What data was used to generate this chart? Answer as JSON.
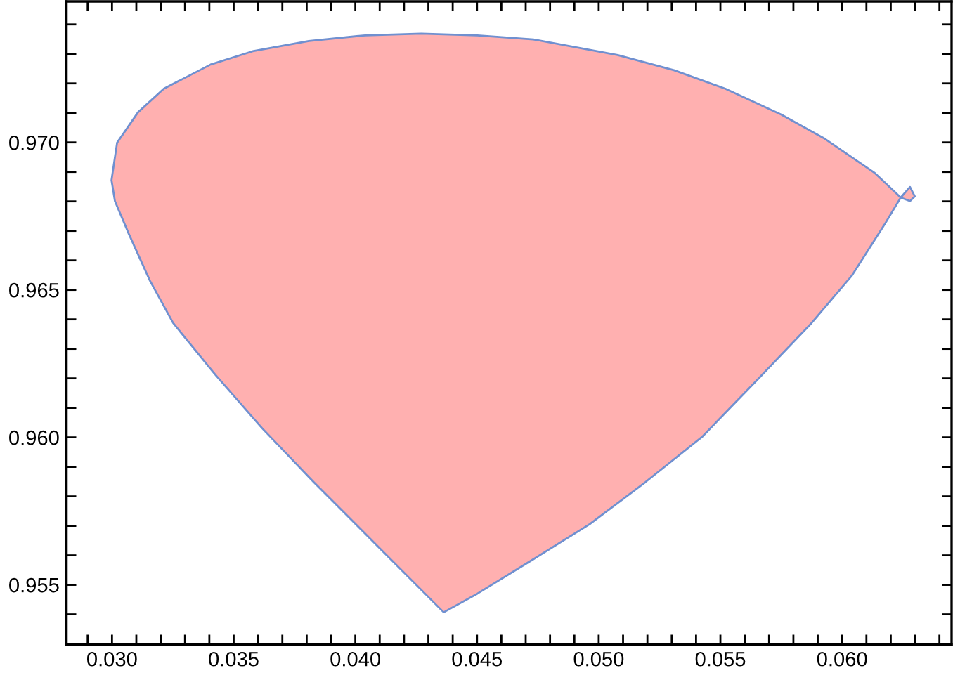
{
  "chart_data": {
    "type": "area",
    "series": [
      {
        "color": "#ffb0b0",
        "x": [
          0.02998,
          0.03021,
          0.03107,
          0.03213,
          0.03405,
          0.03578,
          0.03809,
          0.0404,
          0.04271,
          0.04501,
          0.04732,
          0.05078,
          0.05309,
          0.0552,
          0.05751,
          0.05924,
          0.06135,
          0.06241,
          0.06279,
          0.06299,
          0.06279,
          0.06241,
          0.06174,
          0.06039,
          0.05875,
          0.05655,
          0.05424,
          0.05193,
          0.04963,
          0.04732,
          0.04501,
          0.04363,
          0.04098,
          0.03828,
          0.03617,
          0.03424,
          0.03251,
          0.03156,
          0.03069,
          0.03012
        ],
        "values": [
          0.96872,
          0.96999,
          0.97102,
          0.97182,
          0.97264,
          0.97309,
          0.97344,
          0.97363,
          0.97369,
          0.97363,
          0.97349,
          0.97296,
          0.97245,
          0.97182,
          0.97094,
          0.97015,
          0.96896,
          0.96813,
          0.96849,
          0.96817,
          0.96801,
          0.96813,
          0.96721,
          0.96547,
          0.96388,
          0.96198,
          0.96001,
          0.95849,
          0.95706,
          0.95587,
          0.9547,
          0.95407,
          0.95626,
          0.95849,
          0.96031,
          0.96213,
          0.96388,
          0.96531,
          0.9669,
          0.96801
        ]
      }
    ],
    "xlim": [
      0.02813,
      0.0645
    ],
    "ylim": [
      0.95298,
      0.97478
    ],
    "xticks": [
      {
        "value": 0.029,
        "label": null
      },
      {
        "value": 0.03,
        "label": "0.030"
      },
      {
        "value": 0.031,
        "label": null
      },
      {
        "value": 0.032,
        "label": null
      },
      {
        "value": 0.033,
        "label": null
      },
      {
        "value": 0.034,
        "label": null
      },
      {
        "value": 0.035,
        "label": "0.035"
      },
      {
        "value": 0.036,
        "label": null
      },
      {
        "value": 0.037,
        "label": null
      },
      {
        "value": 0.038,
        "label": null
      },
      {
        "value": 0.039,
        "label": null
      },
      {
        "value": 0.04,
        "label": "0.040"
      },
      {
        "value": 0.041,
        "label": null
      },
      {
        "value": 0.042,
        "label": null
      },
      {
        "value": 0.043,
        "label": null
      },
      {
        "value": 0.044,
        "label": null
      },
      {
        "value": 0.045,
        "label": "0.045"
      },
      {
        "value": 0.046,
        "label": null
      },
      {
        "value": 0.047,
        "label": null
      },
      {
        "value": 0.048,
        "label": null
      },
      {
        "value": 0.049,
        "label": null
      },
      {
        "value": 0.05,
        "label": "0.050"
      },
      {
        "value": 0.051,
        "label": null
      },
      {
        "value": 0.052,
        "label": null
      },
      {
        "value": 0.053,
        "label": null
      },
      {
        "value": 0.054,
        "label": null
      },
      {
        "value": 0.055,
        "label": "0.055"
      },
      {
        "value": 0.056,
        "label": null
      },
      {
        "value": 0.057,
        "label": null
      },
      {
        "value": 0.058,
        "label": null
      },
      {
        "value": 0.059,
        "label": null
      },
      {
        "value": 0.06,
        "label": "0.060"
      },
      {
        "value": 0.061,
        "label": null
      },
      {
        "value": 0.062,
        "label": null
      },
      {
        "value": 0.063,
        "label": null
      },
      {
        "value": 0.064,
        "label": null
      }
    ],
    "yticks": [
      {
        "value": 0.954,
        "label": null
      },
      {
        "value": 0.955,
        "label": "0.955"
      },
      {
        "value": 0.956,
        "label": null
      },
      {
        "value": 0.957,
        "label": null
      },
      {
        "value": 0.958,
        "label": null
      },
      {
        "value": 0.959,
        "label": null
      },
      {
        "value": 0.96,
        "label": "0.960"
      },
      {
        "value": 0.961,
        "label": null
      },
      {
        "value": 0.962,
        "label": null
      },
      {
        "value": 0.963,
        "label": null
      },
      {
        "value": 0.964,
        "label": null
      },
      {
        "value": 0.965,
        "label": "0.965"
      },
      {
        "value": 0.966,
        "label": null
      },
      {
        "value": 0.967,
        "label": null
      },
      {
        "value": 0.968,
        "label": null
      },
      {
        "value": 0.969,
        "label": null
      },
      {
        "value": 0.97,
        "label": "0.970"
      },
      {
        "value": 0.971,
        "label": null
      },
      {
        "value": 0.972,
        "label": null
      },
      {
        "value": 0.973,
        "label": null
      },
      {
        "value": 0.974,
        "label": null
      }
    ],
    "grid": false,
    "legend": false
  }
}
